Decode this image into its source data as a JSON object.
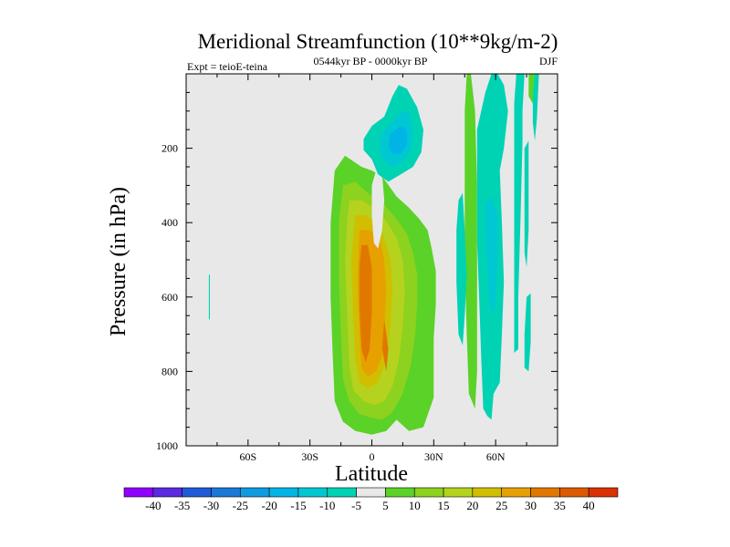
{
  "header": {
    "title": "Meridional Streamfunction (10**9kg/m-2)",
    "experiment": "Expt = teioE-teina",
    "period": "0544kyr BP - 0000kyr BP",
    "season": "DJF"
  },
  "chart_data": {
    "type": "heatmap",
    "title": "Meridional Streamfunction (10**9kg/m-2)",
    "xlabel": "Latitude",
    "ylabel": "Pressure (in hPa)",
    "xlim": [
      -90,
      90
    ],
    "ylim": [
      1000,
      0
    ],
    "x_ticks": [
      {
        "value": -60,
        "label": "60S"
      },
      {
        "value": -30,
        "label": "30S"
      },
      {
        "value": 0,
        "label": "0"
      },
      {
        "value": 30,
        "label": "30N"
      },
      {
        "value": 60,
        "label": "60N"
      }
    ],
    "y_ticks": [
      {
        "value": 200,
        "label": "200"
      },
      {
        "value": 400,
        "label": "400"
      },
      {
        "value": 600,
        "label": "600"
      },
      {
        "value": 800,
        "label": "800"
      },
      {
        "value": 1000,
        "label": "1000"
      }
    ],
    "background_color": "#e8e8e8",
    "contour_levels": [
      -40,
      -35,
      -30,
      -25,
      -20,
      -15,
      -10,
      -5,
      5,
      10,
      15,
      20,
      25,
      30,
      35,
      40
    ],
    "colorbar": {
      "labels": [
        "-40",
        "-35",
        "-30",
        "-25",
        "-20",
        "-15",
        "-10",
        "-5",
        "5",
        "10",
        "15",
        "20",
        "25",
        "30",
        "35",
        "40"
      ],
      "colors": [
        "#8f00ff",
        "#5a2ae0",
        "#1f5ad8",
        "#1a78d8",
        "#0f9be0",
        "#00b4e6",
        "#00c8d2",
        "#00d2b4",
        "#e8e8e8",
        "#5ad228",
        "#8cd21e",
        "#b4d21e",
        "#d2be00",
        "#e6a000",
        "#e07800",
        "#dc5a00",
        "#d83200"
      ]
    },
    "regions": [
      {
        "value": 7,
        "points": [
          [
            -18,
            260
          ],
          [
            -13,
            220
          ],
          [
            -5,
            250
          ],
          [
            0,
            260
          ],
          [
            5,
            275
          ],
          [
            12,
            330
          ],
          [
            18,
            360
          ],
          [
            23,
            390
          ],
          [
            27,
            420
          ],
          [
            29,
            470
          ],
          [
            31,
            530
          ],
          [
            31,
            620
          ],
          [
            30,
            710
          ],
          [
            30,
            800
          ],
          [
            30,
            870
          ],
          [
            25,
            950
          ],
          [
            18,
            960
          ],
          [
            12,
            930
          ],
          [
            7,
            960
          ],
          [
            0,
            970
          ],
          [
            -8,
            960
          ],
          [
            -14,
            935
          ],
          [
            -18,
            880
          ],
          [
            -19,
            750
          ],
          [
            -20,
            600
          ],
          [
            -20,
            400
          ]
        ]
      },
      {
        "value": 12,
        "points": [
          [
            -14,
            300
          ],
          [
            -8,
            290
          ],
          [
            -2,
            320
          ],
          [
            5,
            345
          ],
          [
            12,
            390
          ],
          [
            17,
            430
          ],
          [
            20,
            480
          ],
          [
            22,
            540
          ],
          [
            22,
            620
          ],
          [
            21,
            700
          ],
          [
            19,
            780
          ],
          [
            15,
            860
          ],
          [
            10,
            910
          ],
          [
            5,
            930
          ],
          [
            0,
            925
          ],
          [
            -6,
            915
          ],
          [
            -11,
            880
          ],
          [
            -14,
            820
          ],
          [
            -15,
            700
          ],
          [
            -16,
            550
          ],
          [
            -16,
            400
          ]
        ]
      },
      {
        "value": 17,
        "points": [
          [
            -11,
            340
          ],
          [
            -5,
            340
          ],
          [
            1,
            360
          ],
          [
            7,
            395
          ],
          [
            12,
            440
          ],
          [
            15,
            500
          ],
          [
            16,
            580
          ],
          [
            15,
            680
          ],
          [
            13,
            770
          ],
          [
            10,
            840
          ],
          [
            6,
            880
          ],
          [
            1,
            890
          ],
          [
            -4,
            880
          ],
          [
            -9,
            850
          ],
          [
            -11,
            780
          ],
          [
            -12,
            650
          ],
          [
            -13,
            500
          ],
          [
            -12,
            400
          ]
        ]
      },
      {
        "value": 22,
        "points": [
          [
            -8,
            380
          ],
          [
            -3,
            380
          ],
          [
            2,
            400
          ],
          [
            6,
            440
          ],
          [
            9,
            500
          ],
          [
            10,
            580
          ],
          [
            9,
            680
          ],
          [
            7,
            770
          ],
          [
            3,
            830
          ],
          [
            -2,
            845
          ],
          [
            -6,
            830
          ],
          [
            -8,
            770
          ],
          [
            -9,
            650
          ],
          [
            -10,
            500
          ]
        ]
      },
      {
        "value": 27,
        "points": [
          [
            -6,
            420
          ],
          [
            -1,
            420
          ],
          [
            4,
            450
          ],
          [
            6,
            500
          ],
          [
            7,
            580
          ],
          [
            6,
            680
          ],
          [
            5,
            760
          ],
          [
            2,
            800
          ],
          [
            -2,
            815
          ],
          [
            -5,
            790
          ],
          [
            -6,
            700
          ],
          [
            -7,
            560
          ]
        ]
      },
      {
        "value": 32,
        "points": [
          [
            -5,
            460
          ],
          [
            -2,
            460
          ],
          [
            0,
            520
          ],
          [
            0,
            640
          ],
          [
            -1,
            740
          ],
          [
            -3,
            775
          ],
          [
            -5,
            740
          ],
          [
            -6,
            620
          ],
          [
            -6,
            520
          ]
        ]
      },
      {
        "value": 32,
        "points": [
          [
            6,
            660
          ],
          [
            8,
            740
          ],
          [
            7,
            800
          ],
          [
            5,
            740
          ]
        ]
      },
      {
        "value": 0,
        "points": [
          [
            2,
            260
          ],
          [
            5,
            270
          ],
          [
            6,
            340
          ],
          [
            5,
            420
          ],
          [
            3,
            470
          ],
          [
            1,
            455
          ],
          [
            0,
            380
          ],
          [
            0,
            300
          ]
        ]
      },
      {
        "value": -7,
        "points": [
          [
            -4,
            175
          ],
          [
            0,
            140
          ],
          [
            6,
            115
          ],
          [
            10,
            60
          ],
          [
            13,
            30
          ],
          [
            17,
            40
          ],
          [
            22,
            90
          ],
          [
            25,
            150
          ],
          [
            24,
            210
          ],
          [
            20,
            250
          ],
          [
            14,
            270
          ],
          [
            8,
            290
          ],
          [
            3,
            270
          ],
          [
            0,
            230
          ],
          [
            -4,
            205
          ]
        ]
      },
      {
        "value": -12,
        "points": [
          [
            4,
            170
          ],
          [
            8,
            140
          ],
          [
            12,
            115
          ],
          [
            15,
            100
          ],
          [
            18,
            105
          ],
          [
            20,
            150
          ],
          [
            19,
            205
          ],
          [
            15,
            235
          ],
          [
            10,
            250
          ],
          [
            6,
            235
          ],
          [
            4,
            205
          ]
        ]
      },
      {
        "value": -17,
        "points": [
          [
            9,
            160
          ],
          [
            14,
            140
          ],
          [
            17,
            150
          ],
          [
            17,
            190
          ],
          [
            14,
            215
          ],
          [
            10,
            215
          ],
          [
            8,
            195
          ]
        ]
      },
      {
        "value": 7,
        "points": [
          [
            46,
            0
          ],
          [
            48,
            0
          ],
          [
            50,
            100
          ],
          [
            51,
            300
          ],
          [
            51,
            600
          ],
          [
            51,
            800
          ],
          [
            50,
            900
          ],
          [
            47,
            860
          ],
          [
            46,
            700
          ],
          [
            45,
            500
          ],
          [
            45,
            300
          ],
          [
            45,
            100
          ]
        ]
      },
      {
        "value": 7,
        "points": [
          [
            76,
            0
          ],
          [
            79,
            0
          ],
          [
            80,
            60
          ],
          [
            78,
            80
          ],
          [
            76,
            60
          ]
        ]
      },
      {
        "value": -7,
        "points": [
          [
            42,
            340
          ],
          [
            44,
            320
          ],
          [
            45,
            420
          ],
          [
            46,
            540
          ],
          [
            45,
            650
          ],
          [
            44,
            730
          ],
          [
            42,
            700
          ],
          [
            41,
            560
          ],
          [
            41,
            420
          ]
        ]
      },
      {
        "value": -7,
        "points": [
          [
            51,
            150
          ],
          [
            55,
            50
          ],
          [
            58,
            0
          ],
          [
            61,
            0
          ],
          [
            64,
            30
          ],
          [
            66,
            100
          ],
          [
            64,
            200
          ],
          [
            62,
            260
          ],
          [
            63,
            400
          ],
          [
            64,
            560
          ],
          [
            63,
            700
          ],
          [
            62,
            830
          ],
          [
            59,
            860
          ],
          [
            58,
            930
          ],
          [
            56,
            920
          ],
          [
            54,
            900
          ],
          [
            53,
            760
          ],
          [
            52,
            600
          ],
          [
            51,
            450
          ],
          [
            51,
            300
          ]
        ]
      },
      {
        "value": -12,
        "points": [
          [
            55,
            350
          ],
          [
            58,
            330
          ],
          [
            61,
            380
          ],
          [
            61,
            500
          ],
          [
            60,
            600
          ],
          [
            59,
            650
          ],
          [
            57,
            620
          ],
          [
            56,
            520
          ],
          [
            55,
            430
          ]
        ]
      },
      {
        "value": -7,
        "points": [
          [
            70,
            0
          ],
          [
            74,
            0
          ],
          [
            73,
            100
          ],
          [
            73,
            180
          ],
          [
            72,
            400
          ],
          [
            71,
            600
          ],
          [
            71,
            740
          ],
          [
            69,
            750
          ],
          [
            69,
            600
          ],
          [
            69,
            400
          ],
          [
            69,
            200
          ],
          [
            69,
            80
          ]
        ]
      },
      {
        "value": -7,
        "points": [
          [
            74,
            200
          ],
          [
            76,
            180
          ],
          [
            76,
            300
          ],
          [
            76,
            420
          ],
          [
            75,
            520
          ],
          [
            74,
            480
          ],
          [
            74,
            350
          ]
        ]
      },
      {
        "value": -7,
        "points": [
          [
            75,
            600
          ],
          [
            77,
            590
          ],
          [
            77,
            720
          ],
          [
            76,
            800
          ],
          [
            74,
            790
          ],
          [
            74,
            700
          ]
        ]
      },
      {
        "value": -7,
        "points": [
          [
            79,
            0
          ],
          [
            81,
            0
          ],
          [
            80,
            120
          ],
          [
            79,
            180
          ],
          [
            78,
            130
          ],
          [
            78,
            60
          ]
        ]
      },
      {
        "value": -7,
        "points": [
          [
            -79,
            540
          ],
          [
            -78.5,
            540
          ],
          [
            -78.5,
            660
          ],
          [
            -79,
            660
          ]
        ]
      }
    ]
  }
}
